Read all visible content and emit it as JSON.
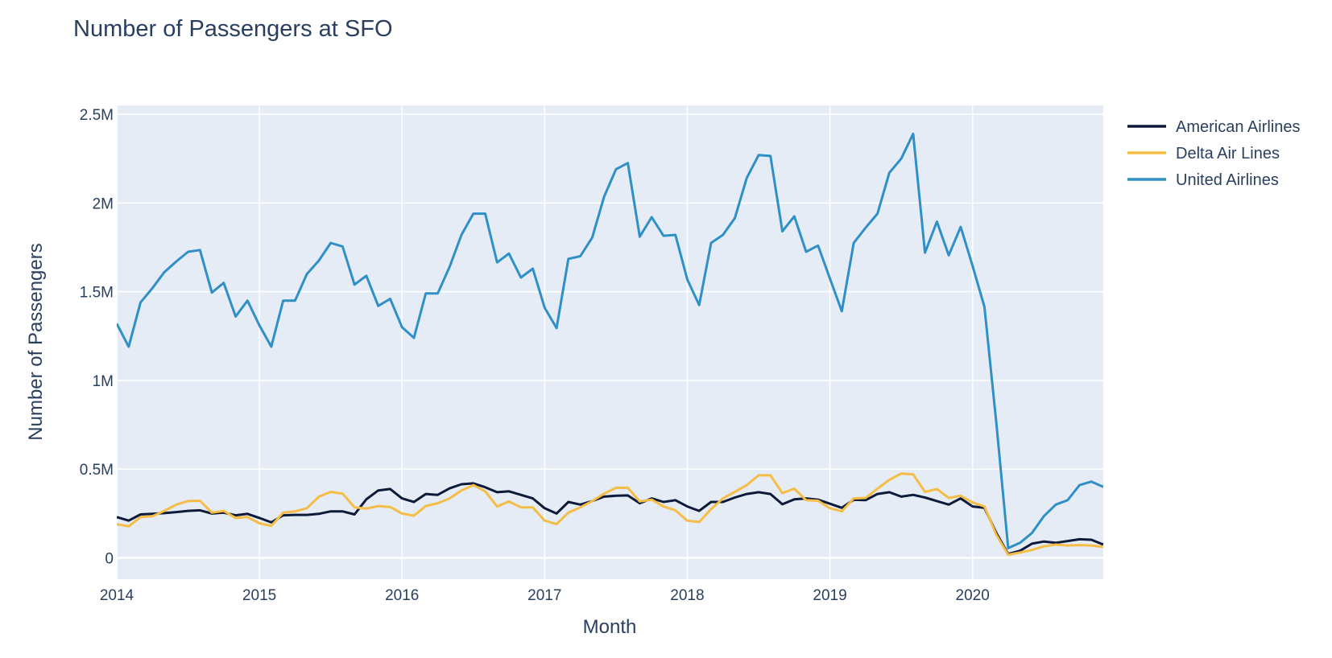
{
  "chart_data": {
    "type": "line",
    "title": "Number of Passengers at SFO",
    "xlabel": "Month",
    "ylabel": "Number of Passengers",
    "xlim": [
      "2014-01",
      "2020-12"
    ],
    "ylim": [
      -120000,
      2550000
    ],
    "x_ticks": [
      "2014",
      "2015",
      "2016",
      "2017",
      "2018",
      "2019",
      "2020"
    ],
    "y_ticks": [
      {
        "value": 0,
        "label": "0"
      },
      {
        "value": 500000,
        "label": "0.5M"
      },
      {
        "value": 1000000,
        "label": "1M"
      },
      {
        "value": 1500000,
        "label": "1.5M"
      },
      {
        "value": 2000000,
        "label": "2M"
      },
      {
        "value": 2500000,
        "label": "2.5M"
      }
    ],
    "grid": true,
    "legend_position": "top-right",
    "plot_background": "#e5ecf6",
    "grid_color": "#ffffff",
    "series": [
      {
        "name": "American Airlines",
        "color": "#0d1a3a",
        "x": [
          "2014-01",
          "2014-02",
          "2014-03",
          "2014-04",
          "2014-05",
          "2014-06",
          "2014-07",
          "2014-08",
          "2014-09",
          "2014-10",
          "2014-11",
          "2014-12",
          "2015-01",
          "2015-02",
          "2015-03",
          "2015-04",
          "2015-05",
          "2015-06",
          "2015-07",
          "2015-08",
          "2015-09",
          "2015-10",
          "2015-11",
          "2015-12",
          "2016-01",
          "2016-02",
          "2016-03",
          "2016-04",
          "2016-05",
          "2016-06",
          "2016-07",
          "2016-08",
          "2016-09",
          "2016-10",
          "2016-11",
          "2016-12",
          "2017-01",
          "2017-02",
          "2017-03",
          "2017-04",
          "2017-05",
          "2017-06",
          "2017-07",
          "2017-08",
          "2017-09",
          "2017-10",
          "2017-11",
          "2017-12",
          "2018-01",
          "2018-02",
          "2018-03",
          "2018-04",
          "2018-05",
          "2018-06",
          "2018-07",
          "2018-08",
          "2018-09",
          "2018-10",
          "2018-11",
          "2018-12",
          "2019-01",
          "2019-02",
          "2019-03",
          "2019-04",
          "2019-05",
          "2019-06",
          "2019-07",
          "2019-08",
          "2019-09",
          "2019-10",
          "2019-11",
          "2019-12",
          "2020-01",
          "2020-02",
          "2020-03",
          "2020-04",
          "2020-05",
          "2020-06",
          "2020-07",
          "2020-08",
          "2020-09",
          "2020-10",
          "2020-11",
          "2020-12"
        ],
        "values": [
          230000,
          210000,
          245000,
          248000,
          252000,
          258000,
          265000,
          268000,
          250000,
          255000,
          240000,
          248000,
          225000,
          200000,
          240000,
          242000,
          242000,
          248000,
          262000,
          262000,
          245000,
          330000,
          380000,
          388000,
          335000,
          315000,
          360000,
          355000,
          392000,
          415000,
          420000,
          398000,
          370000,
          375000,
          355000,
          335000,
          280000,
          250000,
          315000,
          300000,
          320000,
          345000,
          350000,
          352000,
          308000,
          335000,
          315000,
          325000,
          290000,
          265000,
          315000,
          315000,
          340000,
          360000,
          370000,
          360000,
          302000,
          330000,
          335000,
          328000,
          305000,
          282000,
          328000,
          325000,
          360000,
          370000,
          345000,
          355000,
          340000,
          320000,
          300000,
          335000,
          290000,
          282000,
          140000,
          22000,
          40000,
          80000,
          92000,
          85000,
          95000,
          105000,
          102000,
          75000
        ]
      },
      {
        "name": "Delta Air Lines",
        "color": "#f5bd45",
        "x": [
          "2014-01",
          "2014-02",
          "2014-03",
          "2014-04",
          "2014-05",
          "2014-06",
          "2014-07",
          "2014-08",
          "2014-09",
          "2014-10",
          "2014-11",
          "2014-12",
          "2015-01",
          "2015-02",
          "2015-03",
          "2015-04",
          "2015-05",
          "2015-06",
          "2015-07",
          "2015-08",
          "2015-09",
          "2015-10",
          "2015-11",
          "2015-12",
          "2016-01",
          "2016-02",
          "2016-03",
          "2016-04",
          "2016-05",
          "2016-06",
          "2016-07",
          "2016-08",
          "2016-09",
          "2016-10",
          "2016-11",
          "2016-12",
          "2017-01",
          "2017-02",
          "2017-03",
          "2017-04",
          "2017-05",
          "2017-06",
          "2017-07",
          "2017-08",
          "2017-09",
          "2017-10",
          "2017-11",
          "2017-12",
          "2018-01",
          "2018-02",
          "2018-03",
          "2018-04",
          "2018-05",
          "2018-06",
          "2018-07",
          "2018-08",
          "2018-09",
          "2018-10",
          "2018-11",
          "2018-12",
          "2019-01",
          "2019-02",
          "2019-03",
          "2019-04",
          "2019-05",
          "2019-06",
          "2019-07",
          "2019-08",
          "2019-09",
          "2019-10",
          "2019-11",
          "2019-12",
          "2020-01",
          "2020-02",
          "2020-03",
          "2020-04",
          "2020-05",
          "2020-06",
          "2020-07",
          "2020-08",
          "2020-09",
          "2020-10",
          "2020-11",
          "2020-12"
        ],
        "values": [
          190000,
          178000,
          230000,
          235000,
          265000,
          300000,
          320000,
          322000,
          255000,
          265000,
          225000,
          230000,
          195000,
          180000,
          255000,
          262000,
          280000,
          345000,
          372000,
          362000,
          285000,
          278000,
          292000,
          287000,
          250000,
          238000,
          292000,
          308000,
          335000,
          380000,
          410000,
          375000,
          290000,
          318000,
          285000,
          285000,
          210000,
          190000,
          255000,
          285000,
          320000,
          362000,
          395000,
          395000,
          318000,
          328000,
          290000,
          268000,
          210000,
          202000,
          275000,
          335000,
          372000,
          410000,
          465000,
          465000,
          365000,
          390000,
          325000,
          322000,
          280000,
          262000,
          335000,
          338000,
          390000,
          440000,
          475000,
          470000,
          372000,
          388000,
          338000,
          350000,
          312000,
          290000,
          130000,
          18000,
          30000,
          45000,
          65000,
          75000,
          70000,
          72000,
          70000,
          62000
        ]
      },
      {
        "name": "United Airlines",
        "color": "#2f8fc7",
        "x": [
          "2014-01",
          "2014-02",
          "2014-03",
          "2014-04",
          "2014-05",
          "2014-06",
          "2014-07",
          "2014-08",
          "2014-09",
          "2014-10",
          "2014-11",
          "2014-12",
          "2015-01",
          "2015-02",
          "2015-03",
          "2015-04",
          "2015-05",
          "2015-06",
          "2015-07",
          "2015-08",
          "2015-09",
          "2015-10",
          "2015-11",
          "2015-12",
          "2016-01",
          "2016-02",
          "2016-03",
          "2016-04",
          "2016-05",
          "2016-06",
          "2016-07",
          "2016-08",
          "2016-09",
          "2016-10",
          "2016-11",
          "2016-12",
          "2017-01",
          "2017-02",
          "2017-03",
          "2017-04",
          "2017-05",
          "2017-06",
          "2017-07",
          "2017-08",
          "2017-09",
          "2017-10",
          "2017-11",
          "2017-12",
          "2018-01",
          "2018-02",
          "2018-03",
          "2018-04",
          "2018-05",
          "2018-06",
          "2018-07",
          "2018-08",
          "2018-09",
          "2018-10",
          "2018-11",
          "2018-12",
          "2019-01",
          "2019-02",
          "2019-03",
          "2019-04",
          "2019-05",
          "2019-06",
          "2019-07",
          "2019-08",
          "2019-09",
          "2019-10",
          "2019-11",
          "2019-12",
          "2020-01",
          "2020-02",
          "2020-03",
          "2020-04",
          "2020-05",
          "2020-06",
          "2020-07",
          "2020-08",
          "2020-09",
          "2020-10",
          "2020-11",
          "2020-12"
        ],
        "values": [
          1320000,
          1190000,
          1440000,
          1520000,
          1610000,
          1670000,
          1725000,
          1735000,
          1495000,
          1550000,
          1360000,
          1450000,
          1310000,
          1190000,
          1450000,
          1450000,
          1600000,
          1675000,
          1775000,
          1755000,
          1540000,
          1590000,
          1420000,
          1460000,
          1300000,
          1240000,
          1490000,
          1490000,
          1640000,
          1820000,
          1940000,
          1940000,
          1665000,
          1715000,
          1580000,
          1630000,
          1410000,
          1295000,
          1685000,
          1700000,
          1805000,
          2035000,
          2190000,
          2225000,
          1810000,
          1920000,
          1815000,
          1820000,
          1570000,
          1425000,
          1775000,
          1820000,
          1915000,
          2140000,
          2270000,
          2265000,
          1840000,
          1925000,
          1725000,
          1760000,
          1575000,
          1390000,
          1775000,
          1860000,
          1940000,
          2170000,
          2250000,
          2390000,
          1720000,
          1895000,
          1705000,
          1865000,
          1645000,
          1415000,
          760000,
          55000,
          85000,
          140000,
          235000,
          300000,
          325000,
          410000,
          430000,
          400000
        ]
      }
    ]
  }
}
